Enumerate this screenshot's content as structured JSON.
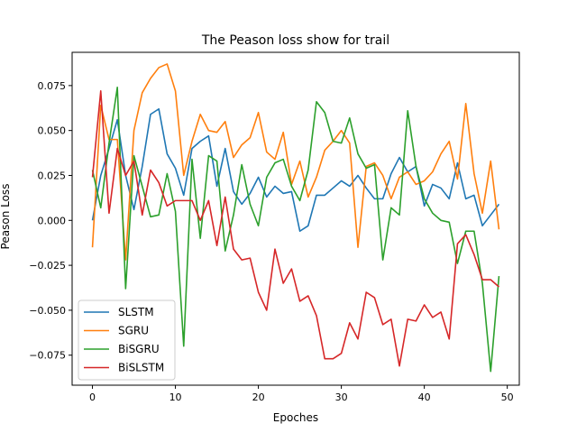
{
  "chart_data": {
    "type": "line",
    "title": "The Peason loss show for trail",
    "xlabel": "Epoches",
    "ylabel": "Peason Loss",
    "xlim": [
      -2.45,
      51.45
    ],
    "ylim": [
      -0.0917,
      0.0935
    ],
    "xticks": [
      0,
      10,
      20,
      30,
      40,
      50
    ],
    "xtick_labels": [
      "0",
      "10",
      "20",
      "30",
      "40",
      "50"
    ],
    "yticks": [
      -0.075,
      -0.05,
      -0.025,
      0.0,
      0.025,
      0.05,
      0.075
    ],
    "ytick_labels": [
      "−0.075",
      "−0.050",
      "−0.025",
      "0.000",
      "0.025",
      "0.050",
      "0.075"
    ],
    "grid": false,
    "legend_position": "lower-left",
    "x": [
      0,
      1,
      2,
      3,
      4,
      5,
      6,
      7,
      8,
      9,
      10,
      11,
      12,
      13,
      14,
      15,
      16,
      17,
      18,
      19,
      20,
      21,
      22,
      23,
      24,
      25,
      26,
      27,
      28,
      29,
      30,
      31,
      32,
      33,
      34,
      35,
      36,
      37,
      38,
      39,
      40,
      41,
      42,
      43,
      44,
      45,
      46,
      47,
      48,
      49
    ],
    "series": [
      {
        "name": "SLSTM",
        "color": "#1f77b4",
        "values": [
          0.0,
          0.025,
          0.04,
          0.056,
          0.025,
          0.006,
          0.03,
          0.059,
          0.062,
          0.037,
          0.029,
          0.014,
          0.04,
          0.044,
          0.047,
          0.019,
          0.04,
          0.016,
          0.009,
          0.015,
          0.024,
          0.013,
          0.019,
          0.015,
          0.016,
          -0.006,
          -0.003,
          0.014,
          0.014,
          0.018,
          0.022,
          0.019,
          0.025,
          0.018,
          0.012,
          0.012,
          0.026,
          0.035,
          0.027,
          0.03,
          0.008,
          0.02,
          0.018,
          0.012,
          0.032,
          0.012,
          0.014,
          -0.003,
          0.003,
          0.009
        ]
      },
      {
        "name": "SGRU",
        "color": "#ff7f0e",
        "values": [
          -0.015,
          0.064,
          0.045,
          0.045,
          -0.022,
          0.05,
          0.071,
          0.079,
          0.085,
          0.087,
          0.072,
          0.025,
          0.044,
          0.059,
          0.05,
          0.049,
          0.055,
          0.035,
          0.042,
          0.046,
          0.06,
          0.038,
          0.034,
          0.049,
          0.02,
          0.033,
          0.013,
          0.024,
          0.039,
          0.044,
          0.05,
          0.043,
          -0.015,
          0.03,
          0.032,
          0.025,
          0.012,
          0.024,
          0.027,
          0.02,
          0.022,
          0.027,
          0.037,
          0.044,
          0.023,
          0.065,
          0.026,
          0.004,
          0.033,
          -0.005
        ]
      },
      {
        "name": "BiSGRU",
        "color": "#2ca02c",
        "values": [
          0.028,
          0.007,
          0.043,
          0.074,
          -0.038,
          0.036,
          0.019,
          0.002,
          0.003,
          0.026,
          0.005,
          -0.07,
          0.034,
          -0.01,
          0.036,
          0.033,
          -0.017,
          0.003,
          0.031,
          0.009,
          -0.003,
          0.024,
          0.032,
          0.034,
          0.019,
          0.011,
          0.028,
          0.066,
          0.06,
          0.044,
          0.043,
          0.057,
          0.037,
          0.029,
          0.031,
          -0.022,
          0.007,
          0.003,
          0.061,
          0.03,
          0.012,
          0.004,
          0.0,
          -0.001,
          -0.024,
          -0.006,
          -0.006,
          -0.035,
          -0.084,
          -0.031
        ]
      },
      {
        "name": "BiSLSTM",
        "color": "#d62728",
        "values": [
          0.024,
          0.072,
          0.004,
          0.04,
          0.025,
          0.033,
          0.003,
          0.028,
          0.021,
          0.008,
          0.011,
          0.011,
          0.011,
          0.0,
          0.011,
          -0.014,
          0.013,
          -0.016,
          -0.022,
          -0.021,
          -0.04,
          -0.05,
          -0.016,
          -0.035,
          -0.027,
          -0.045,
          -0.042,
          -0.053,
          -0.077,
          -0.077,
          -0.074,
          -0.057,
          -0.066,
          -0.04,
          -0.043,
          -0.058,
          -0.055,
          -0.081,
          -0.055,
          -0.056,
          -0.047,
          -0.054,
          -0.051,
          -0.066,
          -0.013,
          -0.008,
          -0.019,
          -0.033,
          -0.033,
          -0.037
        ]
      }
    ]
  }
}
